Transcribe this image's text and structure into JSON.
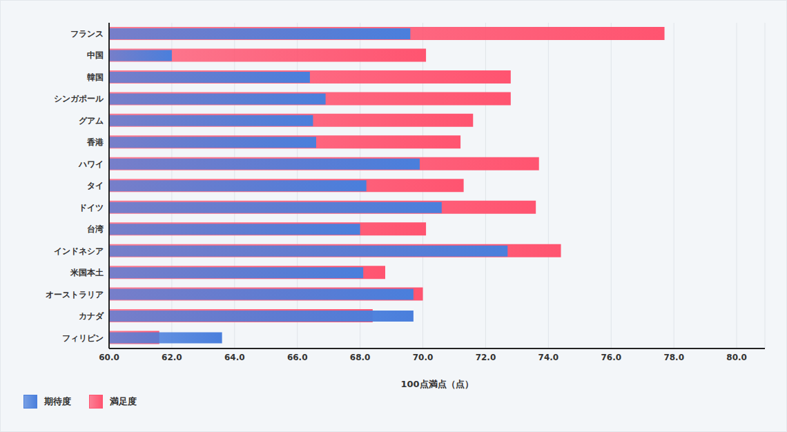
{
  "chart_data": {
    "type": "bar",
    "orientation": "horizontal",
    "x_label": "100点満点（点）",
    "categories": [
      "フランス",
      "中国",
      "韓国",
      "シンガポール",
      "グアム",
      "香港",
      "ハワイ",
      "タイ",
      "ドイツ",
      "台湾",
      "インドネシア",
      "米国本土",
      "オーストラリア",
      "カナダ",
      "フィリピン"
    ],
    "series": [
      {
        "name": "期待度",
        "color": "#4a7fdc",
        "values": [
          69.6,
          62.0,
          66.4,
          66.9,
          66.5,
          66.6,
          69.9,
          68.2,
          70.6,
          68.0,
          72.7,
          68.1,
          69.7,
          69.7,
          63.6
        ]
      },
      {
        "name": "満足度",
        "color": "#ff5470",
        "values": [
          77.7,
          70.1,
          72.8,
          72.8,
          71.6,
          71.2,
          73.7,
          71.3,
          73.6,
          70.1,
          74.4,
          68.8,
          70.0,
          68.4,
          61.6
        ]
      }
    ],
    "xlim": [
      60,
      80.9
    ],
    "xticks": [
      {
        "value": 60,
        "label": "60.0"
      },
      {
        "value": 62,
        "label": "62.0"
      },
      {
        "value": 64,
        "label": "64.0"
      },
      {
        "value": 66,
        "label": "66.0"
      },
      {
        "value": 68,
        "label": "68.0"
      },
      {
        "value": 70,
        "label": "70.0"
      },
      {
        "value": 72,
        "label": "72.0"
      },
      {
        "value": 74,
        "label": "74.0"
      },
      {
        "value": 76,
        "label": "76.0"
      },
      {
        "value": 78,
        "label": "78.0"
      },
      {
        "value": 80,
        "label": "80.0"
      }
    ],
    "grid": true,
    "legend": "bottom-left"
  }
}
